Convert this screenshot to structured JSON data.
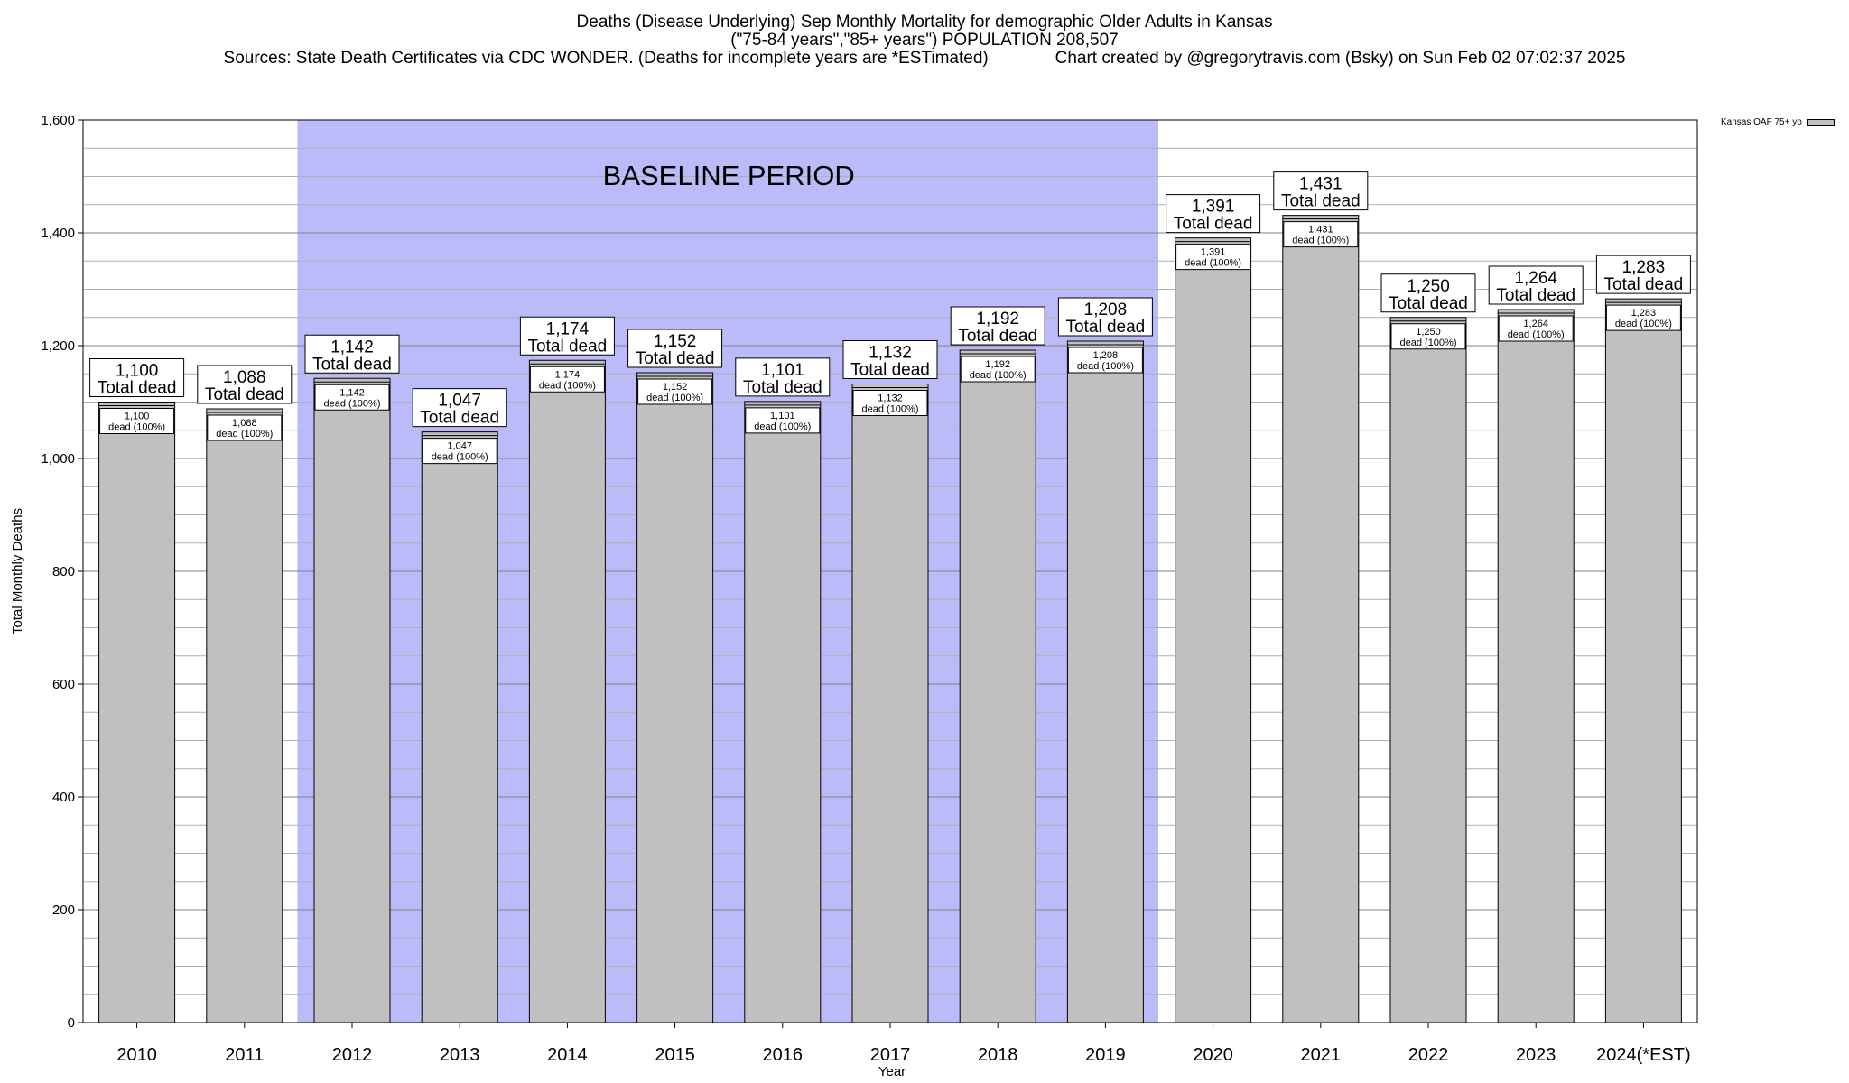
{
  "header": {
    "title_line1": "Deaths (Disease Underlying) Sep Monthly Mortality for demographic Older Adults in Kansas",
    "title_line2": "(\"75-84 years\",\"85+ years\") POPULATION 208,507",
    "sources": "Sources: State Death Certificates via CDC WONDER. (Deaths for incomplete years are *ESTimated)",
    "credit": "Chart created by @gregorytravis.com (Bsky) on Sun Feb 02 07:02:37 2025"
  },
  "legend": {
    "label": "Kansas OAF 75+ yo"
  },
  "colors": {
    "bar": "#c0c0c0",
    "baseline_band": "#bbbbfa",
    "grid": "#b0b0b0"
  },
  "chart_data": {
    "type": "bar",
    "title": "Deaths (Disease Underlying) Sep Monthly Mortality for demographic Older Adults in Kansas",
    "xlabel": "Year",
    "ylabel": "Total Monthly Deaths",
    "ylim": [
      0,
      1600
    ],
    "yticks": [
      0,
      200,
      400,
      600,
      800,
      1000,
      1200,
      1400,
      1600
    ],
    "ytick_labels": [
      "0",
      "200",
      "400",
      "600",
      "800",
      "1,000",
      "1,200",
      "1,400",
      "1,600"
    ],
    "grid": true,
    "legend_position": "top-right",
    "categories": [
      "2010",
      "2011",
      "2012",
      "2013",
      "2014",
      "2015",
      "2016",
      "2017",
      "2018",
      "2019",
      "2020",
      "2021",
      "2022",
      "2023",
      "2024(*EST)"
    ],
    "series": [
      {
        "name": "Kansas OAF 75+ yo",
        "values": [
          1100,
          1088,
          1142,
          1047,
          1174,
          1152,
          1101,
          1132,
          1192,
          1208,
          1391,
          1431,
          1250,
          1264,
          1283
        ]
      }
    ],
    "value_labels": [
      "1,100",
      "1,088",
      "1,142",
      "1,047",
      "1,174",
      "1,152",
      "1,101",
      "1,132",
      "1,192",
      "1,208",
      "1,391",
      "1,431",
      "1,250",
      "1,264",
      "1,283"
    ],
    "total_label_suffix": "Total dead",
    "inner_label_suffix": "dead (100%)",
    "annotation": {
      "text": "BASELINE PERIOD",
      "from": "2012",
      "to": "2019"
    }
  }
}
